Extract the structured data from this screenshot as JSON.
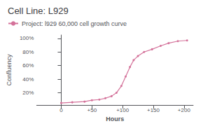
{
  "chart_data": {
    "type": "line",
    "title": "Cell Line: L929",
    "xlabel": "Hours",
    "ylabel": "Confluency",
    "x": [
      0,
      18,
      38,
      50,
      62,
      72,
      82,
      90,
      98,
      105,
      112,
      118,
      125,
      135,
      148,
      162,
      175,
      190,
      205
    ],
    "series": [
      {
        "name": "Project: l929 60,000 cell growth curve",
        "color": "#d4729a",
        "marker": "circle",
        "values": [
          0.05,
          0.06,
          0.07,
          0.09,
          0.1,
          0.12,
          0.15,
          0.2,
          0.3,
          0.44,
          0.58,
          0.68,
          0.74,
          0.8,
          0.84,
          0.89,
          0.93,
          0.96,
          0.97
        ]
      }
    ],
    "xlim": [
      -40,
      215
    ],
    "xticks": [
      0,
      {
        "value": 50,
        "label": "+50"
      },
      {
        "value": 100,
        "label": "+100"
      },
      {
        "value": 150,
        "label": "+150"
      },
      {
        "value": 200,
        "label": "+200"
      }
    ],
    "ylim": [
      0.02,
      1.05
    ],
    "yticks": [
      {
        "value": 0.2,
        "label": "20%"
      },
      {
        "value": 0.4,
        "label": "40%"
      },
      {
        "value": 0.6,
        "label": "60%"
      },
      {
        "value": 0.8,
        "label": "80%"
      },
      {
        "value": 1.0,
        "label": "100%"
      }
    ],
    "grid": false,
    "legend": "top left"
  }
}
